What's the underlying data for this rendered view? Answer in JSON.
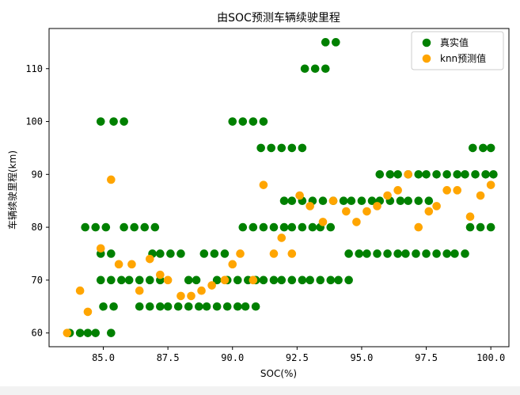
{
  "chart_data": {
    "type": "scatter",
    "title": "由SOC预测车辆续驶里程",
    "xlabel": "SOC(%)",
    "ylabel": "车辆续驶里程(km)",
    "xlim": [
      82.9,
      100.7
    ],
    "ylim": [
      57.4,
      117.6
    ],
    "xticks": [
      "85.0",
      "87.5",
      "90.0",
      "92.5",
      "95.0",
      "97.5",
      "100.0"
    ],
    "yticks": [
      "60",
      "70",
      "80",
      "90",
      "100",
      "110"
    ],
    "legend_position": "top-right",
    "colors": {
      "true": "#008000",
      "knn": "#ffa500"
    },
    "series": [
      {
        "name": "真实值",
        "color": "#008000",
        "points": [
          [
            83.7,
            60
          ],
          [
            84.1,
            60
          ],
          [
            84.4,
            60
          ],
          [
            84.7,
            60
          ],
          [
            85.3,
            60
          ],
          [
            85.0,
            65
          ],
          [
            85.4,
            65
          ],
          [
            86.4,
            65
          ],
          [
            86.8,
            65
          ],
          [
            87.2,
            65
          ],
          [
            87.5,
            65
          ],
          [
            87.9,
            65
          ],
          [
            88.3,
            65
          ],
          [
            88.7,
            65
          ],
          [
            89.0,
            65
          ],
          [
            89.4,
            65
          ],
          [
            89.8,
            65
          ],
          [
            90.2,
            65
          ],
          [
            90.5,
            65
          ],
          [
            90.9,
            65
          ],
          [
            84.9,
            70
          ],
          [
            85.3,
            70
          ],
          [
            85.7,
            70
          ],
          [
            86.0,
            70
          ],
          [
            86.4,
            70
          ],
          [
            86.8,
            70
          ],
          [
            87.2,
            70
          ],
          [
            88.3,
            70
          ],
          [
            88.6,
            70
          ],
          [
            89.4,
            70
          ],
          [
            89.8,
            70
          ],
          [
            90.2,
            70
          ],
          [
            90.6,
            70
          ],
          [
            90.9,
            70
          ],
          [
            91.2,
            70
          ],
          [
            91.6,
            70
          ],
          [
            91.9,
            70
          ],
          [
            92.3,
            70
          ],
          [
            92.7,
            70
          ],
          [
            93.0,
            70
          ],
          [
            93.4,
            70
          ],
          [
            93.8,
            70
          ],
          [
            94.1,
            70
          ],
          [
            94.5,
            70
          ],
          [
            84.9,
            75
          ],
          [
            85.3,
            75
          ],
          [
            86.9,
            75
          ],
          [
            87.2,
            75
          ],
          [
            87.6,
            75
          ],
          [
            88.0,
            75
          ],
          [
            88.9,
            75
          ],
          [
            89.3,
            75
          ],
          [
            89.7,
            75
          ],
          [
            94.5,
            75
          ],
          [
            94.9,
            75
          ],
          [
            95.2,
            75
          ],
          [
            95.6,
            75
          ],
          [
            96.0,
            75
          ],
          [
            96.4,
            75
          ],
          [
            96.7,
            75
          ],
          [
            97.1,
            75
          ],
          [
            97.5,
            75
          ],
          [
            97.9,
            75
          ],
          [
            98.3,
            75
          ],
          [
            98.6,
            75
          ],
          [
            99.0,
            75
          ],
          [
            84.3,
            80
          ],
          [
            84.7,
            80
          ],
          [
            85.1,
            80
          ],
          [
            85.8,
            80
          ],
          [
            86.2,
            80
          ],
          [
            86.6,
            80
          ],
          [
            87.0,
            80
          ],
          [
            90.4,
            80
          ],
          [
            90.8,
            80
          ],
          [
            91.2,
            80
          ],
          [
            91.6,
            80
          ],
          [
            92.0,
            80
          ],
          [
            92.3,
            80
          ],
          [
            92.7,
            80
          ],
          [
            93.1,
            80
          ],
          [
            93.4,
            80
          ],
          [
            93.8,
            80
          ],
          [
            99.2,
            80
          ],
          [
            99.6,
            80
          ],
          [
            100.0,
            80
          ],
          [
            92.0,
            85
          ],
          [
            92.3,
            85
          ],
          [
            92.7,
            85
          ],
          [
            93.1,
            85
          ],
          [
            93.5,
            85
          ],
          [
            93.9,
            85
          ],
          [
            94.3,
            85
          ],
          [
            94.6,
            85
          ],
          [
            95.0,
            85
          ],
          [
            95.4,
            85
          ],
          [
            95.7,
            85
          ],
          [
            96.1,
            85
          ],
          [
            96.5,
            85
          ],
          [
            96.8,
            85
          ],
          [
            97.2,
            85
          ],
          [
            97.6,
            85
          ],
          [
            95.7,
            90
          ],
          [
            96.1,
            90
          ],
          [
            96.4,
            90
          ],
          [
            96.8,
            90
          ],
          [
            97.2,
            90
          ],
          [
            97.5,
            90
          ],
          [
            97.9,
            90
          ],
          [
            98.3,
            90
          ],
          [
            98.7,
            90
          ],
          [
            99.0,
            90
          ],
          [
            99.4,
            90
          ],
          [
            99.8,
            90
          ],
          [
            100.1,
            90
          ],
          [
            91.1,
            95
          ],
          [
            91.5,
            95
          ],
          [
            91.9,
            95
          ],
          [
            92.3,
            95
          ],
          [
            92.7,
            95
          ],
          [
            99.3,
            95
          ],
          [
            99.7,
            95
          ],
          [
            100.0,
            95
          ],
          [
            84.9,
            100
          ],
          [
            85.4,
            100
          ],
          [
            85.8,
            100
          ],
          [
            90.0,
            100
          ],
          [
            90.4,
            100
          ],
          [
            90.8,
            100
          ],
          [
            91.2,
            100
          ],
          [
            92.8,
            110
          ],
          [
            93.2,
            110
          ],
          [
            93.6,
            110
          ],
          [
            93.6,
            115
          ],
          [
            94.0,
            115
          ]
        ]
      },
      {
        "name": "knn预测值",
        "color": "#ffa500",
        "points": [
          [
            83.6,
            60
          ],
          [
            84.1,
            68
          ],
          [
            84.4,
            64
          ],
          [
            84.9,
            76
          ],
          [
            85.3,
            89
          ],
          [
            85.6,
            73
          ],
          [
            86.1,
            73
          ],
          [
            86.4,
            68
          ],
          [
            86.8,
            74
          ],
          [
            87.2,
            71
          ],
          [
            87.5,
            70
          ],
          [
            88.0,
            67
          ],
          [
            88.4,
            67
          ],
          [
            88.8,
            68
          ],
          [
            89.2,
            69
          ],
          [
            89.7,
            70
          ],
          [
            90.0,
            73
          ],
          [
            90.3,
            75
          ],
          [
            90.8,
            70
          ],
          [
            91.2,
            88
          ],
          [
            91.6,
            75
          ],
          [
            91.9,
            78
          ],
          [
            92.3,
            75
          ],
          [
            92.6,
            86
          ],
          [
            93.0,
            84
          ],
          [
            93.5,
            81
          ],
          [
            93.9,
            85
          ],
          [
            94.4,
            83
          ],
          [
            94.8,
            81
          ],
          [
            95.2,
            83
          ],
          [
            95.6,
            84
          ],
          [
            96.0,
            86
          ],
          [
            96.4,
            87
          ],
          [
            96.8,
            90
          ],
          [
            97.2,
            80
          ],
          [
            97.6,
            83
          ],
          [
            97.9,
            84
          ],
          [
            98.3,
            87
          ],
          [
            98.7,
            87
          ],
          [
            99.2,
            82
          ],
          [
            99.6,
            86
          ],
          [
            100.0,
            88
          ]
        ]
      }
    ]
  }
}
